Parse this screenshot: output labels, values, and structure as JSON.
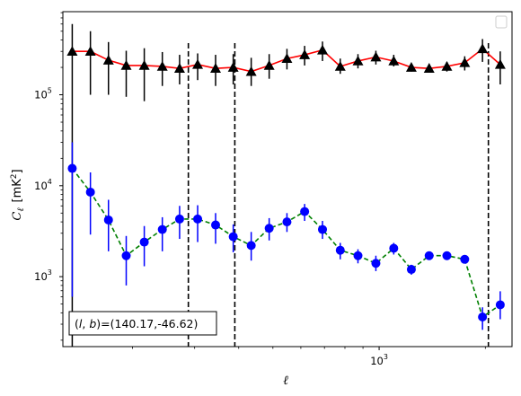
{
  "chart_data": {
    "type": "scatter",
    "xscale": "log",
    "yscale": "log",
    "xlim": [
      127,
      2380
    ],
    "ylim": [
      170,
      820000
    ],
    "xlabel": "ℓ",
    "ylabel": {
      "symbol": "C",
      "subscript": "ℓ",
      "units": "[mK",
      "units_sup": "2",
      "units_end": "]"
    },
    "x_ticks": [
      {
        "value": 1000,
        "label": "10",
        "exp": "3"
      }
    ],
    "y_ticks": [
      {
        "value": 1000,
        "label": "10",
        "exp": "3"
      },
      {
        "value": 10000,
        "label": "10",
        "exp": "4"
      },
      {
        "value": 100000,
        "label": "10",
        "exp": "5"
      }
    ],
    "legend": {
      "location": "upper right",
      "entries": []
    },
    "annotation": "(l, b)=(140.17,-46.62)",
    "annotation_parts": {
      "open": "(",
      "l": "l",
      "comma": ", ",
      "b": "b",
      "close": ")",
      "rest": "=(140.17,-46.62)"
    },
    "vlines": [
      288,
      390,
      2040
    ],
    "series": [
      {
        "marker": "triangle",
        "marker_color": "#000000",
        "line_color": "#ff0000",
        "line_style": "solid",
        "x": [
          135,
          152,
          171,
          192,
          216,
          243,
          272,
          306,
          344,
          386,
          434,
          488,
          548,
          615,
          691,
          776,
          871,
          979,
          1100,
          1234,
          1386,
          1556,
          1748,
          1963,
          2204
        ],
        "y": [
          300000,
          300000,
          240000,
          210000,
          210000,
          205000,
          195000,
          215000,
          195000,
          200000,
          180000,
          210000,
          250000,
          275000,
          310000,
          205000,
          235000,
          260000,
          235000,
          200000,
          195000,
          205000,
          225000,
          320000,
          215000
        ],
        "err_low": [
          300000,
          200000,
          140000,
          115000,
          125000,
          80000,
          65000,
          70000,
          70000,
          70000,
          55000,
          60000,
          60000,
          65000,
          75000,
          35000,
          40000,
          45000,
          30000,
          20000,
          20000,
          25000,
          40000,
          90000,
          85000
        ],
        "err_high": [
          300000,
          200000,
          140000,
          95000,
          115000,
          90000,
          80000,
          70000,
          80000,
          80000,
          75000,
          70000,
          70000,
          70000,
          75000,
          45000,
          45000,
          45000,
          40000,
          20000,
          25000,
          25000,
          40000,
          90000,
          85000
        ]
      },
      {
        "marker": "circle",
        "marker_color": "#0000ff",
        "line_color": "#008000",
        "line_style": "dashed",
        "x": [
          135,
          152,
          171,
          192,
          216,
          243,
          272,
          306,
          344,
          386,
          434,
          488,
          548,
          615,
          691,
          776,
          871,
          979,
          1100,
          1234,
          1386,
          1556,
          1748,
          1963,
          2204
        ],
        "y": [
          15500,
          8500,
          4200,
          1700,
          2400,
          3300,
          4300,
          4300,
          3700,
          2750,
          2200,
          3400,
          4000,
          5200,
          3300,
          1950,
          1700,
          1400,
          2050,
          1200,
          1700,
          1700,
          1550,
          360,
          490
        ],
        "err_low": [
          14900,
          5600,
          2300,
          900,
          1100,
          1400,
          1700,
          1900,
          1400,
          900,
          700,
          900,
          900,
          1100,
          700,
          400,
          300,
          250,
          300,
          150,
          150,
          150,
          150,
          100,
          150
        ],
        "err_high": [
          14500,
          5500,
          2800,
          1100,
          1200,
          1200,
          1700,
          1800,
          1300,
          1000,
          900,
          1000,
          1000,
          1100,
          800,
          400,
          300,
          300,
          300,
          150,
          150,
          150,
          150,
          100,
          200
        ]
      }
    ]
  }
}
